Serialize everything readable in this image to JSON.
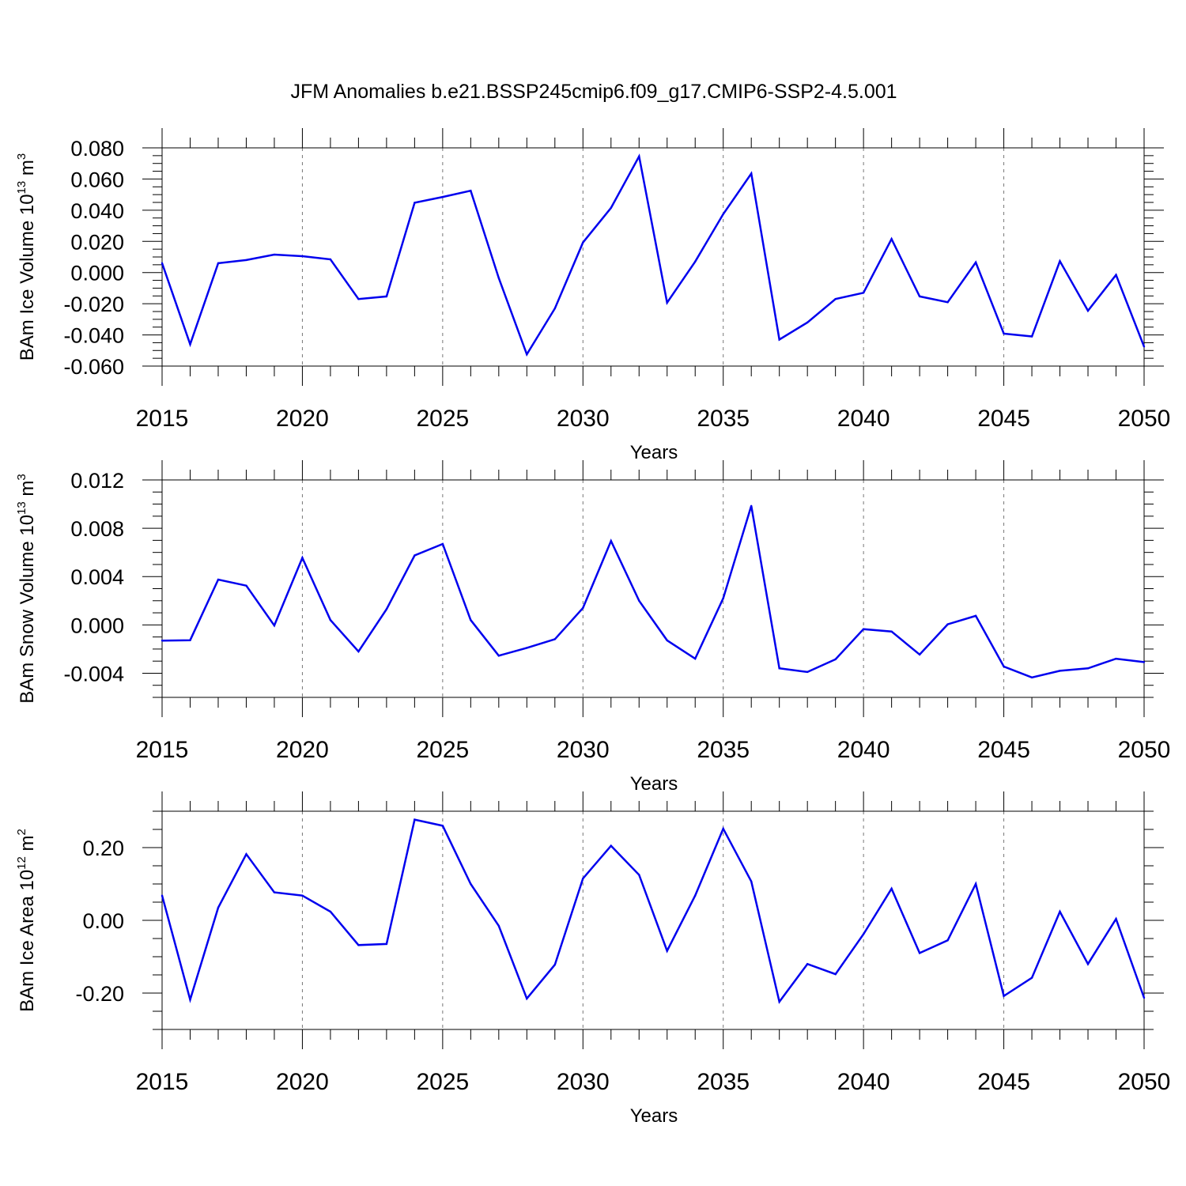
{
  "figure": {
    "title": "JFM Anomalies b.e21.BSSP245cmip6.f09_g17.CMIP6-SSP2-4.5.001"
  },
  "chart_data": [
    {
      "type": "line",
      "xlabel": "Years",
      "ylabel": {
        "main": "BAm Ice Volume 10",
        "exp": "13",
        "unit": " m",
        "unit_exp": "3"
      },
      "xlim": [
        2015,
        2050
      ],
      "ylim": [
        -0.06,
        0.08
      ],
      "yticks": [
        -0.06,
        -0.04,
        -0.02,
        0.0,
        0.02,
        0.04,
        0.06,
        0.08
      ],
      "ytick_labels": [
        "-0.060",
        "-0.040",
        "-0.020",
        "0.000",
        "0.020",
        "0.040",
        "0.060",
        "0.080"
      ],
      "yminor": 0.005,
      "xticks": [
        2015,
        2020,
        2025,
        2030,
        2035,
        2040,
        2045,
        2050
      ],
      "xtick_labels": [
        "2015",
        "2020",
        "2025",
        "2030",
        "2035",
        "2040",
        "2045",
        "2050"
      ],
      "grid_x": [
        2020,
        2025,
        2030,
        2035,
        2040,
        2045
      ],
      "grid": "dashed vertical at major ticks",
      "line_color": "#0000ee",
      "x": [
        2015,
        2016,
        2017,
        2018,
        2019,
        2020,
        2021,
        2022,
        2023,
        2024,
        2025,
        2026,
        2027,
        2028,
        2029,
        2030,
        2031,
        2032,
        2033,
        2034,
        2035,
        2036,
        2037,
        2038,
        2039,
        2040,
        2041,
        2042,
        2043,
        2044,
        2045,
        2046,
        2047,
        2048,
        2049,
        2050
      ],
      "values": [
        0.006,
        -0.046,
        0.006,
        0.008,
        0.0115,
        0.0105,
        0.0085,
        -0.017,
        -0.0153,
        0.0448,
        0.0485,
        0.0525,
        -0.0035,
        -0.0525,
        -0.023,
        0.0193,
        0.0415,
        0.0745,
        -0.0193,
        0.007,
        0.0375,
        0.0635,
        -0.043,
        -0.032,
        -0.017,
        -0.013,
        0.0215,
        -0.0153,
        -0.019,
        0.0065,
        -0.0392,
        -0.041,
        0.0073,
        -0.0245,
        -0.0015,
        -0.0475
      ]
    },
    {
      "type": "line",
      "xlabel": "Years",
      "ylabel": {
        "main": "BAm Snow Volume 10",
        "exp": "13",
        "unit": " m",
        "unit_exp": "3"
      },
      "xlim": [
        2015,
        2050
      ],
      "ylim": [
        -0.006,
        0.012
      ],
      "yticks": [
        -0.004,
        0.0,
        0.004,
        0.008,
        0.012
      ],
      "ytick_labels": [
        "-0.004",
        "0.000",
        "0.004",
        "0.008",
        "0.012"
      ],
      "yminor": 0.001,
      "xticks": [
        2015,
        2020,
        2025,
        2030,
        2035,
        2040,
        2045,
        2050
      ],
      "xtick_labels": [
        "2015",
        "2020",
        "2025",
        "2030",
        "2035",
        "2040",
        "2045",
        "2050"
      ],
      "grid_x": [
        2020,
        2025,
        2030,
        2035,
        2040,
        2045
      ],
      "grid": "dashed vertical at major ticks",
      "line_color": "#0000ee",
      "x": [
        2015,
        2016,
        2017,
        2018,
        2019,
        2020,
        2021,
        2022,
        2023,
        2024,
        2025,
        2026,
        2027,
        2028,
        2029,
        2030,
        2031,
        2032,
        2033,
        2034,
        2035,
        2036,
        2037,
        2038,
        2039,
        2040,
        2041,
        2042,
        2043,
        2044,
        2045,
        2046,
        2047,
        2048,
        2049,
        2050
      ],
      "values": [
        -0.0013,
        -0.00127,
        0.00375,
        0.00325,
        -5e-05,
        0.00555,
        0.0004,
        -0.0022,
        0.0013,
        0.00575,
        0.0067,
        0.0004,
        -0.00255,
        -0.0019,
        -0.00118,
        0.0014,
        0.00695,
        0.002,
        -0.00128,
        -0.0028,
        0.0022,
        0.00985,
        -0.0036,
        -0.0039,
        -0.00285,
        -0.00035,
        -0.00055,
        -0.00245,
        5e-05,
        0.00075,
        -0.00345,
        -0.00435,
        -0.0038,
        -0.0036,
        -0.0028,
        -0.00308
      ]
    },
    {
      "type": "line",
      "xlabel": "Years",
      "ylabel": {
        "main": "BAm Ice Area 10",
        "exp": "12",
        "unit": " m",
        "unit_exp": "2"
      },
      "xlim": [
        2015,
        2050
      ],
      "ylim": [
        -0.3,
        0.3
      ],
      "yticks": [
        -0.2,
        0.0,
        0.2
      ],
      "ytick_labels": [
        "-0.20",
        "0.00",
        "0.20"
      ],
      "yminor": 0.05,
      "xticks": [
        2015,
        2020,
        2025,
        2030,
        2035,
        2040,
        2045,
        2050
      ],
      "xtick_labels": [
        "2015",
        "2020",
        "2025",
        "2030",
        "2035",
        "2040",
        "2045",
        "2050"
      ],
      "grid_x": [
        2020,
        2025,
        2030,
        2035,
        2040,
        2045
      ],
      "grid": "dashed vertical at major ticks",
      "line_color": "#0000ee",
      "x": [
        2015,
        2016,
        2017,
        2018,
        2019,
        2020,
        2021,
        2022,
        2023,
        2024,
        2025,
        2026,
        2027,
        2028,
        2029,
        2030,
        2031,
        2032,
        2033,
        2034,
        2035,
        2036,
        2037,
        2038,
        2039,
        2040,
        2041,
        2042,
        2043,
        2044,
        2045,
        2046,
        2047,
        2048,
        2049,
        2050
      ],
      "values": [
        0.068,
        -0.218,
        0.035,
        0.182,
        0.077,
        0.068,
        0.024,
        -0.068,
        -0.065,
        0.277,
        0.26,
        0.1,
        -0.015,
        -0.215,
        -0.122,
        0.115,
        0.205,
        0.125,
        -0.084,
        0.068,
        0.252,
        0.107,
        -0.224,
        -0.12,
        -0.148,
        -0.038,
        0.087,
        -0.09,
        -0.055,
        0.1,
        -0.208,
        -0.158,
        0.024,
        -0.12,
        0.004,
        -0.213
      ]
    }
  ]
}
